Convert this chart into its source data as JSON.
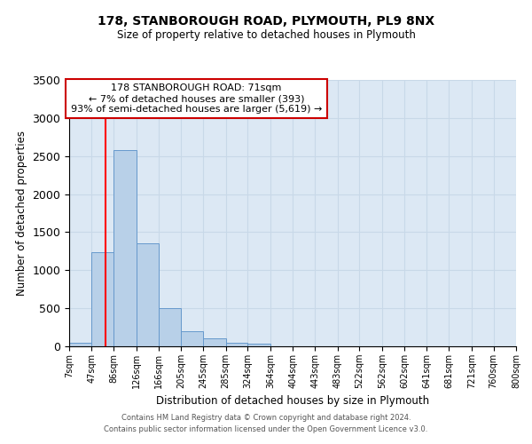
{
  "title": "178, STANBOROUGH ROAD, PLYMOUTH, PL9 8NX",
  "subtitle": "Size of property relative to detached houses in Plymouth",
  "xlabel": "Distribution of detached houses by size in Plymouth",
  "ylabel": "Number of detached properties",
  "bin_edges": [
    7,
    47,
    86,
    126,
    166,
    205,
    245,
    285,
    324,
    364,
    404,
    443,
    483,
    522,
    562,
    602,
    641,
    681,
    721,
    760,
    800
  ],
  "bin_heights": [
    50,
    1240,
    2580,
    1350,
    500,
    200,
    110,
    50,
    30,
    0,
    0,
    0,
    0,
    0,
    0,
    0,
    0,
    0,
    0,
    0
  ],
  "tick_labels": [
    "7sqm",
    "47sqm",
    "86sqm",
    "126sqm",
    "166sqm",
    "205sqm",
    "245sqm",
    "285sqm",
    "324sqm",
    "364sqm",
    "404sqm",
    "443sqm",
    "483sqm",
    "522sqm",
    "562sqm",
    "602sqm",
    "641sqm",
    "681sqm",
    "721sqm",
    "760sqm",
    "800sqm"
  ],
  "bar_color": "#b8d0e8",
  "bar_edge_color": "#6699cc",
  "grid_color": "#c8d8e8",
  "vline_x": 71,
  "vline_color": "red",
  "ylim": [
    0,
    3500
  ],
  "yticks": [
    0,
    500,
    1000,
    1500,
    2000,
    2500,
    3000,
    3500
  ],
  "annotation_title": "178 STANBOROUGH ROAD: 71sqm",
  "annotation_line1": "← 7% of detached houses are smaller (393)",
  "annotation_line2": "93% of semi-detached houses are larger (5,619) →",
  "annotation_box_color": "#ffffff",
  "annotation_box_edge": "#cc0000",
  "footer1": "Contains HM Land Registry data © Crown copyright and database right 2024.",
  "footer2": "Contains public sector information licensed under the Open Government Licence v3.0.",
  "bg_color": "#dce8f4"
}
